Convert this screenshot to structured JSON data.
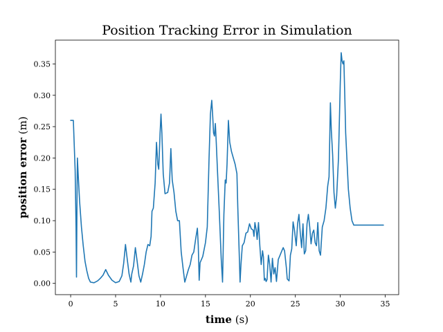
{
  "chart_data": {
    "type": "line",
    "title": "Position Tracking Error in Simulation",
    "xlabel": {
      "bold": "time",
      "unit": "(s)"
    },
    "ylabel": {
      "bold": "position error",
      "unit": "(m)"
    },
    "xlim": [
      -1.7,
      36.5
    ],
    "ylim": [
      -0.018,
      0.388
    ],
    "x_ticks": [
      0,
      5,
      10,
      15,
      20,
      25,
      30,
      35
    ],
    "y_ticks": [
      0.0,
      0.05,
      0.1,
      0.15,
      0.2,
      0.25,
      0.3,
      0.35
    ],
    "x_tick_labels": [
      "0",
      "5",
      "10",
      "15",
      "20",
      "25",
      "30",
      "35"
    ],
    "y_tick_labels": [
      "0.00",
      "0.05",
      "0.10",
      "0.15",
      "0.20",
      "0.25",
      "0.30",
      "0.35"
    ],
    "grid": false,
    "color": "#1f77b4",
    "series": [
      {
        "points": [
          [
            0,
            0.26
          ],
          [
            0.2,
            0.26
          ],
          [
            0.3,
            0.26
          ],
          [
            0.4,
            0.22
          ],
          [
            0.5,
            0.18
          ],
          [
            0.6,
            0.09
          ],
          [
            0.65,
            0.01
          ],
          [
            0.7,
            0.12
          ],
          [
            0.75,
            0.2
          ],
          [
            0.85,
            0.17
          ],
          [
            1.0,
            0.13
          ],
          [
            1.2,
            0.09
          ],
          [
            1.4,
            0.06
          ],
          [
            1.6,
            0.035
          ],
          [
            1.8,
            0.02
          ],
          [
            2.0,
            0.008
          ],
          [
            2.2,
            0.002
          ],
          [
            2.6,
            0.001
          ],
          [
            3.0,
            0.004
          ],
          [
            3.3,
            0.008
          ],
          [
            3.6,
            0.013
          ],
          [
            3.9,
            0.022
          ],
          [
            4.2,
            0.013
          ],
          [
            4.6,
            0.005
          ],
          [
            5.0,
            0.001
          ],
          [
            5.4,
            0.003
          ],
          [
            5.7,
            0.012
          ],
          [
            5.9,
            0.032
          ],
          [
            6.1,
            0.062
          ],
          [
            6.3,
            0.038
          ],
          [
            6.5,
            0.015
          ],
          [
            6.7,
            0.002
          ],
          [
            6.8,
            0.015
          ],
          [
            7.0,
            0.028
          ],
          [
            7.2,
            0.057
          ],
          [
            7.4,
            0.035
          ],
          [
            7.6,
            0.012
          ],
          [
            7.8,
            0.002
          ],
          [
            8.0,
            0.015
          ],
          [
            8.2,
            0.03
          ],
          [
            8.4,
            0.05
          ],
          [
            8.6,
            0.062
          ],
          [
            8.8,
            0.06
          ],
          [
            8.95,
            0.075
          ],
          [
            9.05,
            0.115
          ],
          [
            9.2,
            0.12
          ],
          [
            9.4,
            0.16
          ],
          [
            9.55,
            0.225
          ],
          [
            9.7,
            0.19
          ],
          [
            9.8,
            0.182
          ],
          [
            9.95,
            0.24
          ],
          [
            10.05,
            0.27
          ],
          [
            10.15,
            0.24
          ],
          [
            10.3,
            0.175
          ],
          [
            10.5,
            0.143
          ],
          [
            10.8,
            0.145
          ],
          [
            11.0,
            0.16
          ],
          [
            11.15,
            0.215
          ],
          [
            11.3,
            0.165
          ],
          [
            11.5,
            0.145
          ],
          [
            11.7,
            0.115
          ],
          [
            11.9,
            0.1
          ],
          [
            12.1,
            0.1
          ],
          [
            12.3,
            0.05
          ],
          [
            12.5,
            0.025
          ],
          [
            12.7,
            0.002
          ],
          [
            12.9,
            0.012
          ],
          [
            13.1,
            0.022
          ],
          [
            13.3,
            0.03
          ],
          [
            13.5,
            0.045
          ],
          [
            13.7,
            0.05
          ],
          [
            13.9,
            0.07
          ],
          [
            14.1,
            0.088
          ],
          [
            14.2,
            0.06
          ],
          [
            14.3,
            0.005
          ],
          [
            14.4,
            0.033
          ],
          [
            14.7,
            0.043
          ],
          [
            15.0,
            0.065
          ],
          [
            15.2,
            0.09
          ],
          [
            15.4,
            0.2
          ],
          [
            15.55,
            0.27
          ],
          [
            15.7,
            0.292
          ],
          [
            15.8,
            0.268
          ],
          [
            15.9,
            0.24
          ],
          [
            16.0,
            0.235
          ],
          [
            16.1,
            0.255
          ],
          [
            16.2,
            0.225
          ],
          [
            16.35,
            0.175
          ],
          [
            16.55,
            0.11
          ],
          [
            16.75,
            0.04
          ],
          [
            16.9,
            0.002
          ],
          [
            17.05,
            0.11
          ],
          [
            17.2,
            0.165
          ],
          [
            17.3,
            0.16
          ],
          [
            17.4,
            0.19
          ],
          [
            17.55,
            0.26
          ],
          [
            17.7,
            0.225
          ],
          [
            17.9,
            0.21
          ],
          [
            18.1,
            0.2
          ],
          [
            18.3,
            0.19
          ],
          [
            18.5,
            0.175
          ],
          [
            18.6,
            0.12
          ],
          [
            18.75,
            0.05
          ],
          [
            18.85,
            0.002
          ],
          [
            18.95,
            0.03
          ],
          [
            19.1,
            0.06
          ],
          [
            19.3,
            0.065
          ],
          [
            19.5,
            0.08
          ],
          [
            19.7,
            0.082
          ],
          [
            19.9,
            0.095
          ],
          [
            20.1,
            0.087
          ],
          [
            20.3,
            0.085
          ],
          [
            20.4,
            0.075
          ],
          [
            20.5,
            0.097
          ],
          [
            20.65,
            0.085
          ],
          [
            20.75,
            0.07
          ],
          [
            20.9,
            0.097
          ],
          [
            21.05,
            0.06
          ],
          [
            21.2,
            0.03
          ],
          [
            21.35,
            0.052
          ],
          [
            21.45,
            0.042
          ],
          [
            21.55,
            0.005
          ],
          [
            21.65,
            0.008
          ],
          [
            21.75,
            0.003
          ],
          [
            21.85,
            0.006
          ],
          [
            22.0,
            0.045
          ],
          [
            22.15,
            0.03
          ],
          [
            22.3,
            0.002
          ],
          [
            22.45,
            0.04
          ],
          [
            22.6,
            0.015
          ],
          [
            22.75,
            0.025
          ],
          [
            22.9,
            0.003
          ],
          [
            23.1,
            0.038
          ],
          [
            23.3,
            0.045
          ],
          [
            23.5,
            0.052
          ],
          [
            23.65,
            0.057
          ],
          [
            23.8,
            0.052
          ],
          [
            24.0,
            0.025
          ],
          [
            24.1,
            0.007
          ],
          [
            24.3,
            0.004
          ],
          [
            24.45,
            0.045
          ],
          [
            24.6,
            0.055
          ],
          [
            24.75,
            0.098
          ],
          [
            24.9,
            0.085
          ],
          [
            25.1,
            0.06
          ],
          [
            25.25,
            0.095
          ],
          [
            25.4,
            0.11
          ],
          [
            25.55,
            0.08
          ],
          [
            25.7,
            0.057
          ],
          [
            25.85,
            0.095
          ],
          [
            26.0,
            0.047
          ],
          [
            26.15,
            0.052
          ],
          [
            26.3,
            0.095
          ],
          [
            26.45,
            0.11
          ],
          [
            26.6,
            0.09
          ],
          [
            26.75,
            0.063
          ],
          [
            26.9,
            0.08
          ],
          [
            27.05,
            0.085
          ],
          [
            27.2,
            0.065
          ],
          [
            27.35,
            0.06
          ],
          [
            27.5,
            0.097
          ],
          [
            27.65,
            0.052
          ],
          [
            27.8,
            0.045
          ],
          [
            28.0,
            0.09
          ],
          [
            28.2,
            0.1
          ],
          [
            28.4,
            0.12
          ],
          [
            28.6,
            0.155
          ],
          [
            28.75,
            0.17
          ],
          [
            28.9,
            0.288
          ],
          [
            29.0,
            0.245
          ],
          [
            29.15,
            0.205
          ],
          [
            29.3,
            0.145
          ],
          [
            29.45,
            0.12
          ],
          [
            29.6,
            0.14
          ],
          [
            29.8,
            0.2
          ],
          [
            30.0,
            0.32
          ],
          [
            30.1,
            0.368
          ],
          [
            30.2,
            0.355
          ],
          [
            30.3,
            0.35
          ],
          [
            30.4,
            0.355
          ],
          [
            30.5,
            0.3
          ],
          [
            30.6,
            0.24
          ],
          [
            30.75,
            0.195
          ],
          [
            30.9,
            0.15
          ],
          [
            31.1,
            0.12
          ],
          [
            31.3,
            0.1
          ],
          [
            31.5,
            0.093
          ],
          [
            32.5,
            0.093
          ],
          [
            34.8,
            0.093
          ]
        ]
      }
    ]
  }
}
